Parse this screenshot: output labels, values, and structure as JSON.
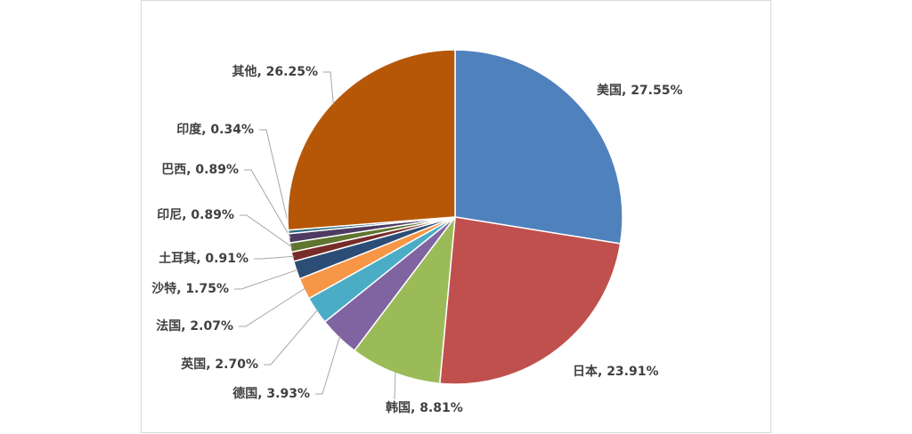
{
  "chart_data": {
    "type": "pie",
    "values": [
      27.55,
      23.91,
      8.81,
      3.93,
      2.7,
      2.07,
      1.75,
      0.91,
      0.89,
      0.89,
      0.34,
      26.25
    ],
    "value_labels": [
      "美国, 27.55%",
      "日本, 23.91%",
      "韩国, 8.81%",
      "德国, 3.93%",
      "英国, 2.70%",
      "法国, 2.07%",
      "沙特, 1.75%",
      "土耳其, 0.91%",
      "印尼, 0.89%",
      "巴西, 0.89%",
      "印度, 0.34%",
      "其他, 26.25%"
    ],
    "colors": [
      "#4f81bd",
      "#c0504d",
      "#9bbb59",
      "#8064a2",
      "#4bacc6",
      "#f79646",
      "#2c4d75",
      "#772c2a",
      "#5f7530",
      "#4d3b62",
      "#276a7c",
      "#b65708"
    ]
  }
}
